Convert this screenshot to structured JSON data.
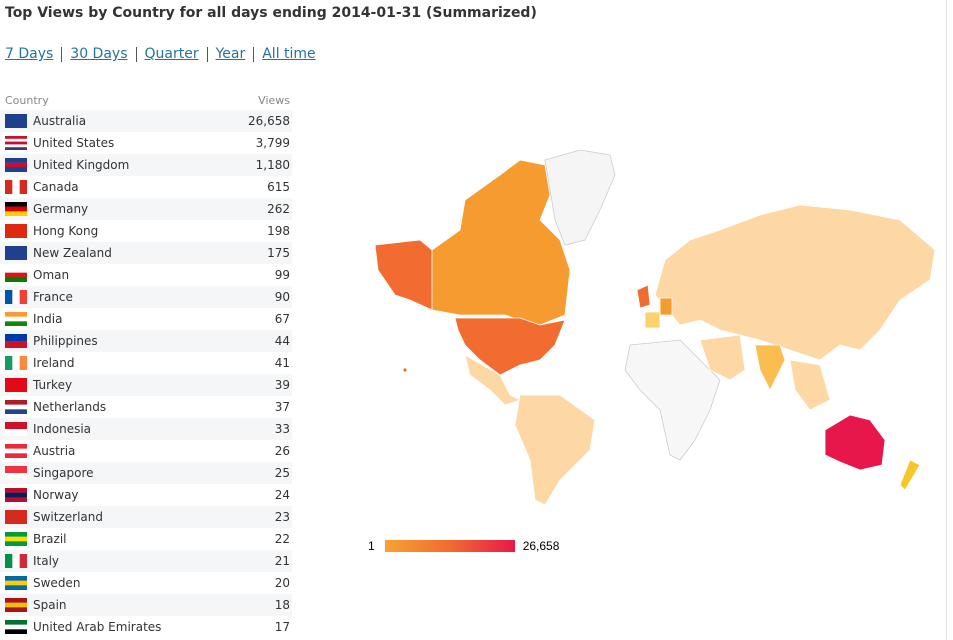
{
  "header": {
    "title": "Top Views by Country for all days ending 2014-01-31 (Summarized)"
  },
  "links": [
    "7 Days",
    "30 Days",
    "Quarter",
    "Year",
    "All time"
  ],
  "table": {
    "columns": [
      "Country",
      "Views"
    ],
    "rows": [
      [
        "Australia",
        "26,658"
      ],
      [
        "United States",
        "3,799"
      ],
      [
        "United Kingdom",
        "1,180"
      ],
      [
        "Canada",
        "615"
      ],
      [
        "Germany",
        "262"
      ],
      [
        "Hong Kong",
        "198"
      ],
      [
        "New Zealand",
        "175"
      ],
      [
        "Oman",
        "99"
      ],
      [
        "France",
        "90"
      ],
      [
        "India",
        "67"
      ],
      [
        "Philippines",
        "44"
      ],
      [
        "Ireland",
        "41"
      ],
      [
        "Turkey",
        "39"
      ],
      [
        "Netherlands",
        "37"
      ],
      [
        "Indonesia",
        "33"
      ],
      [
        "Austria",
        "26"
      ],
      [
        "Singapore",
        "25"
      ],
      [
        "Norway",
        "24"
      ],
      [
        "Switzerland",
        "23"
      ],
      [
        "Brazil",
        "22"
      ],
      [
        "Italy",
        "21"
      ],
      [
        "Sweden",
        "20"
      ],
      [
        "Spain",
        "18"
      ],
      [
        "United Arab Emirates",
        "17"
      ]
    ]
  },
  "map": {
    "legend": {
      "min": "1",
      "max": "26,658"
    }
  }
}
